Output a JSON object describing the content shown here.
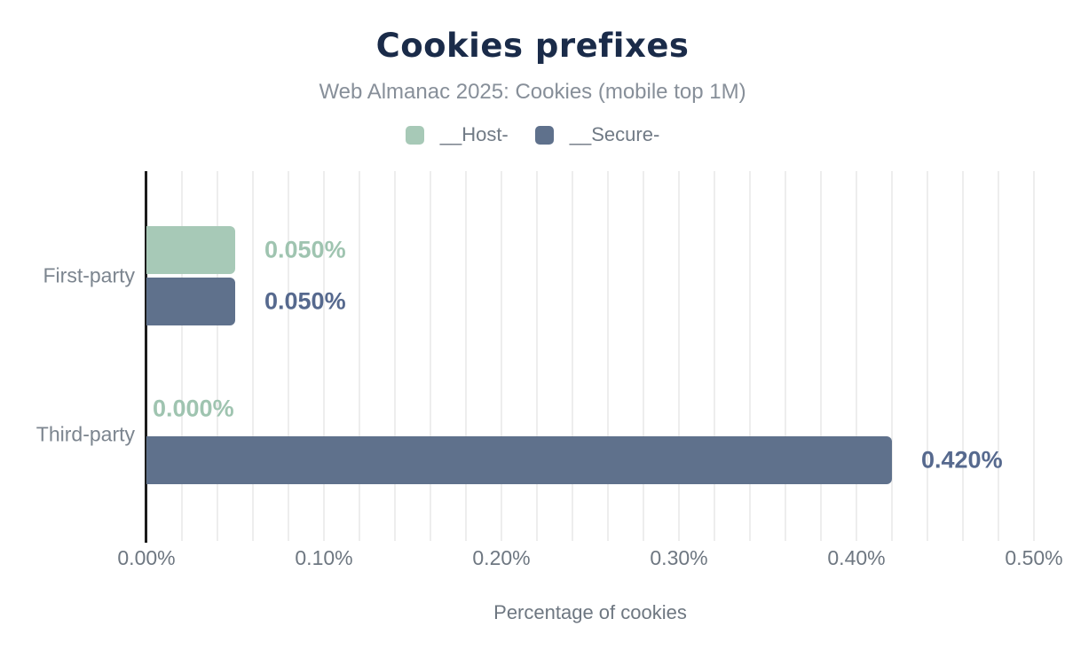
{
  "chart_data": {
    "type": "bar",
    "orientation": "horizontal",
    "title": "Cookies prefixes",
    "subtitle": "Web Almanac 2025: Cookies (mobile top 1M)",
    "xlabel": "Percentage of cookies",
    "categories": [
      "First-party",
      "Third-party"
    ],
    "series": [
      {
        "name": "__Host-",
        "color": "#a7c9b7",
        "label_color": "#9fc4b0",
        "values": [
          0.05,
          0.0
        ],
        "value_labels": [
          "0.050%",
          "0.000%"
        ]
      },
      {
        "name": "__Secure-",
        "color": "#5f718c",
        "label_color": "#56698e",
        "values": [
          0.05,
          0.42
        ],
        "value_labels": [
          "0.050%",
          "0.420%"
        ]
      }
    ],
    "xlim": [
      0,
      0.5
    ],
    "x_tick_values": [
      0,
      0.1,
      0.2,
      0.3,
      0.4,
      0.5
    ],
    "x_tick_labels": [
      "0.00%",
      "0.10%",
      "0.20%",
      "0.30%",
      "0.40%",
      "0.50%"
    ],
    "minor_grid_step": 0.02,
    "grid": "vertical-minor",
    "legend_position": "top"
  }
}
